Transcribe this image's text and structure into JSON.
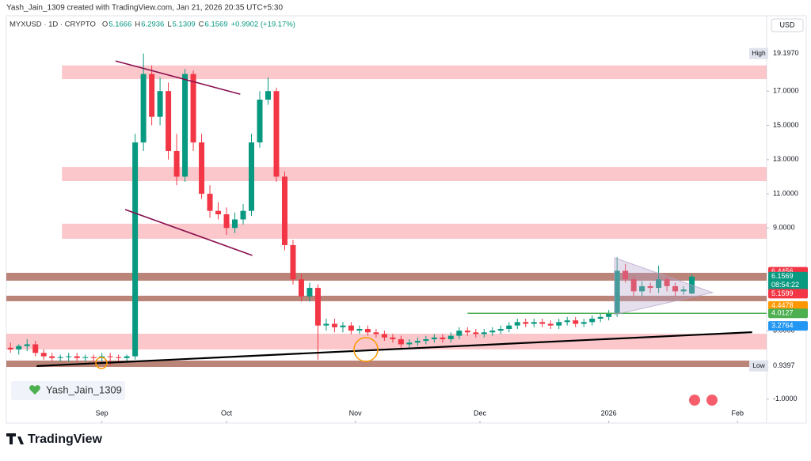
{
  "chart_data": {
    "type": "candlestick",
    "credit": "Yash_Jain_1309 created with TradingView.com, Jan 21, 2026 20:35 UTC+5:30",
    "symbol": "MYXUSD · 1D · CRYPTO",
    "ohlc_legend": [
      {
        "key": "O",
        "value": 5.1666
      },
      {
        "key": "H",
        "value": 6.2936
      },
      {
        "key": "L",
        "value": 5.1309
      },
      {
        "key": "C",
        "value": 6.1569
      }
    ],
    "change": "+0.9902 (+19.17%)",
    "currency": "USD",
    "watermark": "Yash_Jain_1309",
    "brand": "TradingView",
    "up_color": "#089981",
    "down_color": "#f23645",
    "x": [
      0,
      2,
      4,
      6,
      8,
      10,
      12,
      14,
      16,
      18,
      20,
      22,
      24,
      26,
      28,
      30,
      32,
      34,
      36,
      38,
      40,
      42,
      44,
      46,
      48,
      50,
      52,
      54,
      56,
      58,
      60,
      62,
      64,
      66,
      68,
      70,
      72,
      74,
      76,
      78,
      80,
      82,
      84,
      86,
      88,
      90,
      92,
      94,
      96,
      98,
      100,
      102,
      104,
      106,
      108,
      110,
      112,
      114,
      116,
      118,
      120,
      122,
      124,
      126,
      128,
      130,
      132,
      134,
      136,
      138,
      140,
      142,
      144,
      146,
      148,
      150,
      152,
      154,
      156,
      158,
      160,
      162,
      164
    ],
    "open": [
      2.0,
      1.9,
      2.1,
      2.2,
      1.7,
      1.5,
      1.4,
      1.45,
      1.5,
      1.4,
      1.45,
      1.4,
      1.5,
      1.45,
      1.4,
      1.5,
      14,
      18,
      15.5,
      17,
      13.5,
      12,
      18,
      14,
      11,
      10,
      9.8,
      9,
      9.5,
      10,
      14,
      16.5,
      17,
      12,
      8,
      6,
      5,
      5.5,
      3.3,
      3.4,
      3.2,
      3.3,
      3,
      3.1,
      2.9,
      2.8,
      2.6,
      2.5,
      2.2,
      2.3,
      2.4,
      2.5,
      2.6,
      2.5,
      2.7,
      3,
      2.9,
      2.8,
      2.9,
      3,
      3.1,
      3.3,
      3.5,
      3.4,
      3.5,
      3.4,
      3.3,
      3.5,
      3.6,
      3.4,
      3.5,
      3.7,
      3.8,
      4,
      6.5,
      6,
      5.3,
      5.6,
      5.5,
      6,
      5.6,
      5.3,
      5.1666
    ],
    "high": [
      2.3,
      2.2,
      2.5,
      2.4,
      1.9,
      1.7,
      1.6,
      1.7,
      1.7,
      1.6,
      1.6,
      1.7,
      1.7,
      1.6,
      1.6,
      14.5,
      19.197,
      18.5,
      17.8,
      17.5,
      14.5,
      18.3,
      18.2,
      14.5,
      11.5,
      10.5,
      10.2,
      9.9,
      10.4,
      14.5,
      17,
      17.8,
      17.2,
      12.3,
      8.3,
      6.3,
      5.8,
      5.7,
      3.7,
      3.7,
      3.5,
      3.5,
      3.3,
      3.3,
      3.1,
      3,
      2.8,
      2.7,
      2.5,
      2.6,
      2.7,
      2.8,
      2.8,
      2.9,
      3.2,
      3.2,
      3.1,
      3.1,
      3.2,
      3.3,
      3.5,
      3.7,
      3.7,
      3.7,
      3.7,
      3.6,
      3.7,
      3.8,
      3.8,
      3.7,
      3.9,
      4,
      4.2,
      7.3,
      6.9,
      6.2,
      5.9,
      5.8,
      6.8,
      6.2,
      5.8,
      5.6,
      6.2936
    ],
    "low": [
      1.7,
      1.6,
      1.8,
      1.5,
      1.3,
      1.2,
      1.2,
      1.2,
      1.2,
      1.2,
      1.2,
      1.2,
      0.9397,
      1.2,
      1.2,
      1.3,
      13.5,
      15,
      15,
      13,
      11.5,
      11.7,
      13.5,
      10.7,
      9.6,
      9.5,
      8.6,
      8.7,
      9.2,
      9.7,
      13.7,
      16.2,
      11.7,
      7.7,
      5.7,
      4.7,
      4.7,
      1.3,
      3,
      2.9,
      2.9,
      2.8,
      2.8,
      2.7,
      2.6,
      2.4,
      2.3,
      2,
      2,
      2.1,
      2.2,
      2.3,
      2.3,
      2.3,
      2.5,
      2.7,
      2.6,
      2.6,
      2.7,
      2.8,
      2.9,
      3.1,
      3.2,
      3.2,
      3.2,
      3.1,
      3.1,
      3.3,
      3.2,
      3.2,
      3.3,
      3.5,
      3.6,
      3.8,
      5.8,
      5,
      5,
      5.2,
      5.2,
      5.3,
      5,
      5.1,
      5.1309
    ],
    "close": [
      1.9,
      2.1,
      2.2,
      1.7,
      1.5,
      1.4,
      1.45,
      1.5,
      1.4,
      1.45,
      1.4,
      1.5,
      1.45,
      1.4,
      1.5,
      14,
      18,
      15.5,
      17,
      13.5,
      12,
      18,
      14,
      11,
      10,
      9.8,
      9,
      9.5,
      10,
      14,
      16.5,
      17,
      12,
      8,
      6,
      5,
      5.5,
      3.3,
      3.4,
      3.2,
      3.3,
      3,
      3.1,
      2.9,
      2.8,
      2.6,
      2.5,
      2.2,
      2.3,
      2.4,
      2.5,
      2.6,
      2.5,
      2.7,
      3,
      2.9,
      2.8,
      2.9,
      3,
      3.1,
      3.3,
      3.5,
      3.4,
      3.5,
      3.4,
      3.3,
      3.5,
      3.6,
      3.4,
      3.5,
      3.7,
      3.8,
      4,
      6.5,
      6,
      5.3,
      5.6,
      5.5,
      6,
      5.6,
      5.3,
      5.4,
      6.1569
    ],
    "xlim": [
      -1,
      182
    ],
    "ylim": [
      -2.4,
      21.4
    ],
    "xticks": [
      {
        "value": 22,
        "label": "Sep"
      },
      {
        "value": 52,
        "label": "Oct"
      },
      {
        "value": 83,
        "label": "Nov"
      },
      {
        "value": 113,
        "label": "Dec"
      },
      {
        "value": 144,
        "label": "2026"
      },
      {
        "value": 175,
        "label": "Feb"
      }
    ],
    "yticks": [
      {
        "value": 17,
        "label": "17.0000"
      },
      {
        "value": 15,
        "label": "15.0000"
      },
      {
        "value": 13,
        "label": "13.0000"
      },
      {
        "value": 11,
        "label": "11.0000"
      },
      {
        "value": 9,
        "label": "9.0000"
      },
      {
        "value": 3,
        "label": "3.0000"
      },
      {
        "value": -1,
        "label": "-1.0000"
      }
    ],
    "zones": [
      {
        "from": 17.7,
        "to": 18.5,
        "x_from": 12.4,
        "color": "rgba(242,54,69,0.28)"
      },
      {
        "from": 11.74,
        "to": 12.57,
        "x_from": 12.4,
        "color": "rgba(242,54,69,0.28)"
      },
      {
        "from": 8.37,
        "to": 9.25,
        "x_from": 12.4,
        "color": "rgba(242,54,69,0.28)"
      },
      {
        "from": 5.92,
        "to": 6.38,
        "x_from": -1,
        "color": "rgba(140,50,30,0.6)"
      },
      {
        "from": 4.72,
        "to": 5.04,
        "x_from": -1,
        "color": "rgba(140,50,30,0.6)"
      },
      {
        "from": 1.9,
        "to": 2.82,
        "x_from": -1,
        "color": "rgba(242,54,69,0.28)"
      },
      {
        "from": 0.88,
        "to": 1.25,
        "x_from": -1,
        "color": "rgba(140,50,30,0.6)"
      }
    ],
    "lines": [
      {
        "x": [
          6.3,
          178.5
        ],
        "y": [
          0.93,
          2.91
        ],
        "color": "#000000"
      },
      {
        "x": [
          25.3,
          55.3
        ],
        "y": [
          18.76,
          16.82
        ],
        "color": "#880e4f"
      },
      {
        "x": [
          27.6,
          58.2
        ],
        "y": [
          10.08,
          7.4
        ],
        "color": "#880e4f"
      },
      {
        "x": [
          110,
          182
        ],
        "y": [
          4.0127,
          4.0127
        ],
        "color": "#4caf50"
      }
    ],
    "high_marker": {
      "label": "High",
      "value": {
        "value": 19.197,
        "label": "19.1970"
      }
    },
    "low_marker": {
      "label": "Low",
      "value": 0.9397
    },
    "price_labels": [
      {
        "value": 6.4456,
        "color": "#f23645"
      },
      {
        "value": 6.1569,
        "color": "#089981",
        "countdown": "08:54:22"
      },
      {
        "value": 5.1599,
        "color": "#f23645"
      },
      {
        "value": 4.4478,
        "color": "#ff9800"
      },
      {
        "value": 4.0127,
        "color": "#4caf50"
      },
      {
        "value": 3.2764,
        "color": "#2196f3"
      }
    ]
  }
}
